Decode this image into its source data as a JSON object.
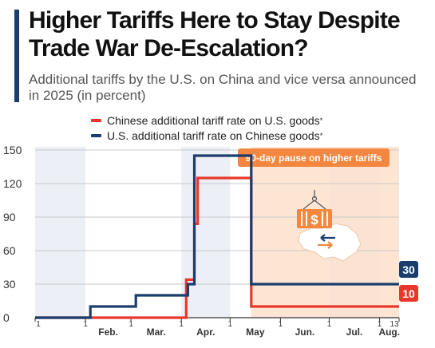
{
  "header": {
    "title": "Higher Tariffs Here to Stay Despite Trade War De-Escalation?",
    "subtitle": "Additional tariffs by the U.S. on China and vice versa announced in 2025 (in percent)"
  },
  "colors": {
    "china_series": "#e8382c",
    "us_series": "#1a3d6e",
    "shade": "#eceff6",
    "pause_region": "#fde0cc",
    "pause_label_bg": "#f4873f"
  },
  "annotation": {
    "label": "90-day pause on higher tariffs",
    "icon": "tariff-crate-usa-map-icon"
  },
  "chart_data": {
    "type": "line",
    "title": "Higher Tariffs Here to Stay Despite Trade War De-Escalation?",
    "subtitle": "Additional tariffs by the U.S. on China and vice versa announced in 2025 (in percent)",
    "ylim": [
      0,
      150
    ],
    "y_ticks": [
      "0",
      "30",
      "60",
      "90",
      "120",
      "150"
    ],
    "x_range": [
      "2025-01-01",
      "2025-08-13"
    ],
    "month_labels": [
      "Feb.",
      "Mar.",
      "Apr.",
      "May",
      "Jun.",
      "Jul.",
      "Aug."
    ],
    "month_starts": [
      "2025-01-01",
      "2025-02-01",
      "2025-03-01",
      "2025-04-01",
      "2025-05-01",
      "2025-06-01",
      "2025-07-01",
      "2025-08-01"
    ],
    "day_tick_label": "1",
    "end_tick_label": "13",
    "grid": "horizontal",
    "legend_position": "top-center",
    "series": [
      {
        "name": "Chinese additional tariff rate on U.S. goods",
        "legend_marker": "*",
        "end_label": "10",
        "points": [
          [
            "2025-01-01",
            0
          ],
          [
            "2025-04-04",
            0
          ],
          [
            "2025-04-04",
            34
          ],
          [
            "2025-04-09",
            34
          ],
          [
            "2025-04-09",
            84
          ],
          [
            "2025-04-11",
            84
          ],
          [
            "2025-04-11",
            125
          ],
          [
            "2025-05-14",
            125
          ],
          [
            "2025-05-14",
            10
          ],
          [
            "2025-08-13",
            10
          ]
        ]
      },
      {
        "name": "U.S. additional tariff rate on Chinese goods",
        "legend_marker": "*",
        "end_label": "30",
        "points": [
          [
            "2025-01-01",
            0
          ],
          [
            "2025-02-04",
            0
          ],
          [
            "2025-02-04",
            10
          ],
          [
            "2025-03-04",
            10
          ],
          [
            "2025-03-04",
            20
          ],
          [
            "2025-04-05",
            20
          ],
          [
            "2025-04-05",
            30
          ],
          [
            "2025-04-09",
            30
          ],
          [
            "2025-04-09",
            145
          ],
          [
            "2025-05-14",
            145
          ],
          [
            "2025-05-14",
            30
          ],
          [
            "2025-08-13",
            30
          ]
        ]
      }
    ],
    "annotations": [
      {
        "text": "90-day pause on higher tariffs",
        "start": "2025-05-14",
        "end": "2025-08-13"
      }
    ]
  }
}
